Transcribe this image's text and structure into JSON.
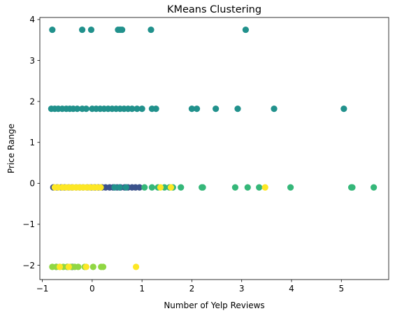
{
  "chart_data": {
    "type": "scatter",
    "title": "KMeans Clustering",
    "xlabel": "Number of Yelp Reviews",
    "ylabel": "Price Range",
    "xlim": [
      -1.05,
      5.95
    ],
    "ylim": [
      -2.35,
      4.05
    ],
    "xticks": [
      -1,
      0,
      1,
      2,
      3,
      4,
      5
    ],
    "yticks": [
      -2,
      -1,
      0,
      1,
      2,
      3,
      4
    ],
    "xtick_labels": [
      "−1",
      "0",
      "1",
      "2",
      "3",
      "4",
      "5"
    ],
    "ytick_labels": [
      "−2",
      "−1",
      "0",
      "1",
      "2",
      "3",
      "4"
    ],
    "grid": false,
    "legend": "none",
    "colors": [
      "#3b528b",
      "#21918c",
      "#35b779",
      "#90d743",
      "#fde725"
    ],
    "series": [
      {
        "color": "#3b528b",
        "x": [
          -0.78,
          -0.7,
          -0.62,
          -0.55,
          -0.47,
          -0.4,
          -0.32,
          -0.25,
          -0.18,
          -0.1,
          -0.02,
          0.05,
          0.12,
          0.2,
          0.27,
          0.35,
          0.42,
          0.5,
          0.57,
          0.65,
          0.72,
          0.8,
          0.87,
          0.95,
          -0.72,
          -0.5,
          -0.4
        ],
        "y": [
          -0.1,
          -0.1,
          -0.1,
          -0.1,
          -0.1,
          -0.1,
          -0.1,
          -0.1,
          -0.1,
          -0.1,
          -0.1,
          -0.1,
          -0.1,
          -0.1,
          -0.1,
          -0.1,
          -0.1,
          -0.1,
          -0.1,
          -0.1,
          -0.1,
          -0.1,
          -0.1,
          -0.1,
          -2.04,
          -2.04,
          -2.04
        ]
      },
      {
        "color": "#21918c",
        "x": [
          -0.8,
          -0.2,
          -0.02,
          0.52,
          0.56,
          0.6,
          1.18,
          3.08,
          -0.82,
          -0.75,
          -0.68,
          -0.6,
          -0.52,
          -0.45,
          -0.38,
          -0.3,
          -0.2,
          -0.12,
          0.0,
          0.08,
          0.16,
          0.24,
          0.32,
          0.4,
          0.48,
          0.56,
          0.64,
          0.72,
          0.8,
          0.9,
          1.0,
          1.2,
          1.28,
          2.0,
          2.1,
          2.48,
          2.92,
          3.65,
          5.05,
          0.45,
          0.55,
          0.68
        ],
        "y": [
          3.75,
          3.75,
          3.75,
          3.75,
          3.75,
          3.75,
          3.75,
          3.75,
          1.82,
          1.82,
          1.82,
          1.82,
          1.82,
          1.82,
          1.82,
          1.82,
          1.82,
          1.82,
          1.82,
          1.82,
          1.82,
          1.82,
          1.82,
          1.82,
          1.82,
          1.82,
          1.82,
          1.82,
          1.82,
          1.82,
          1.82,
          1.82,
          1.82,
          1.82,
          1.82,
          1.82,
          1.82,
          1.82,
          1.82,
          -0.1,
          -0.1,
          -0.1
        ]
      },
      {
        "color": "#35b779",
        "x": [
          1.05,
          1.2,
          1.32,
          1.45,
          1.55,
          1.62,
          1.78,
          2.2,
          2.22,
          2.87,
          3.12,
          3.35,
          3.98,
          5.2,
          5.22,
          5.65
        ],
        "y": [
          -0.1,
          -0.1,
          -0.1,
          -0.1,
          -0.1,
          -0.1,
          -0.1,
          -0.1,
          -0.1,
          -0.1,
          -0.1,
          -0.1,
          -0.1,
          -0.1,
          -0.1,
          -0.1
        ]
      },
      {
        "color": "#90d743",
        "x": [
          -0.8,
          -0.72,
          -0.65,
          -0.58,
          -0.5,
          -0.42,
          -0.35,
          -0.28,
          -0.15,
          0.02,
          0.18,
          0.22
        ],
        "y": [
          -2.04,
          -2.04,
          -2.04,
          -2.04,
          -2.04,
          -2.04,
          -2.04,
          -2.04,
          -2.04,
          -2.04,
          -2.04,
          -2.04
        ]
      },
      {
        "color": "#fde725",
        "x": [
          -0.75,
          -0.68,
          -0.6,
          -0.53,
          -0.46,
          -0.39,
          -0.32,
          -0.25,
          -0.18,
          -0.11,
          -0.04,
          0.03,
          0.1,
          0.17,
          1.37,
          1.58,
          3.47,
          -0.65,
          -0.47,
          -0.12,
          0.88
        ],
        "y": [
          -0.1,
          -0.1,
          -0.1,
          -0.1,
          -0.1,
          -0.1,
          -0.1,
          -0.1,
          -0.1,
          -0.1,
          -0.1,
          -0.1,
          -0.1,
          -0.1,
          -0.1,
          -0.1,
          -0.1,
          -2.04,
          -2.04,
          -2.04,
          -2.04
        ]
      }
    ]
  }
}
